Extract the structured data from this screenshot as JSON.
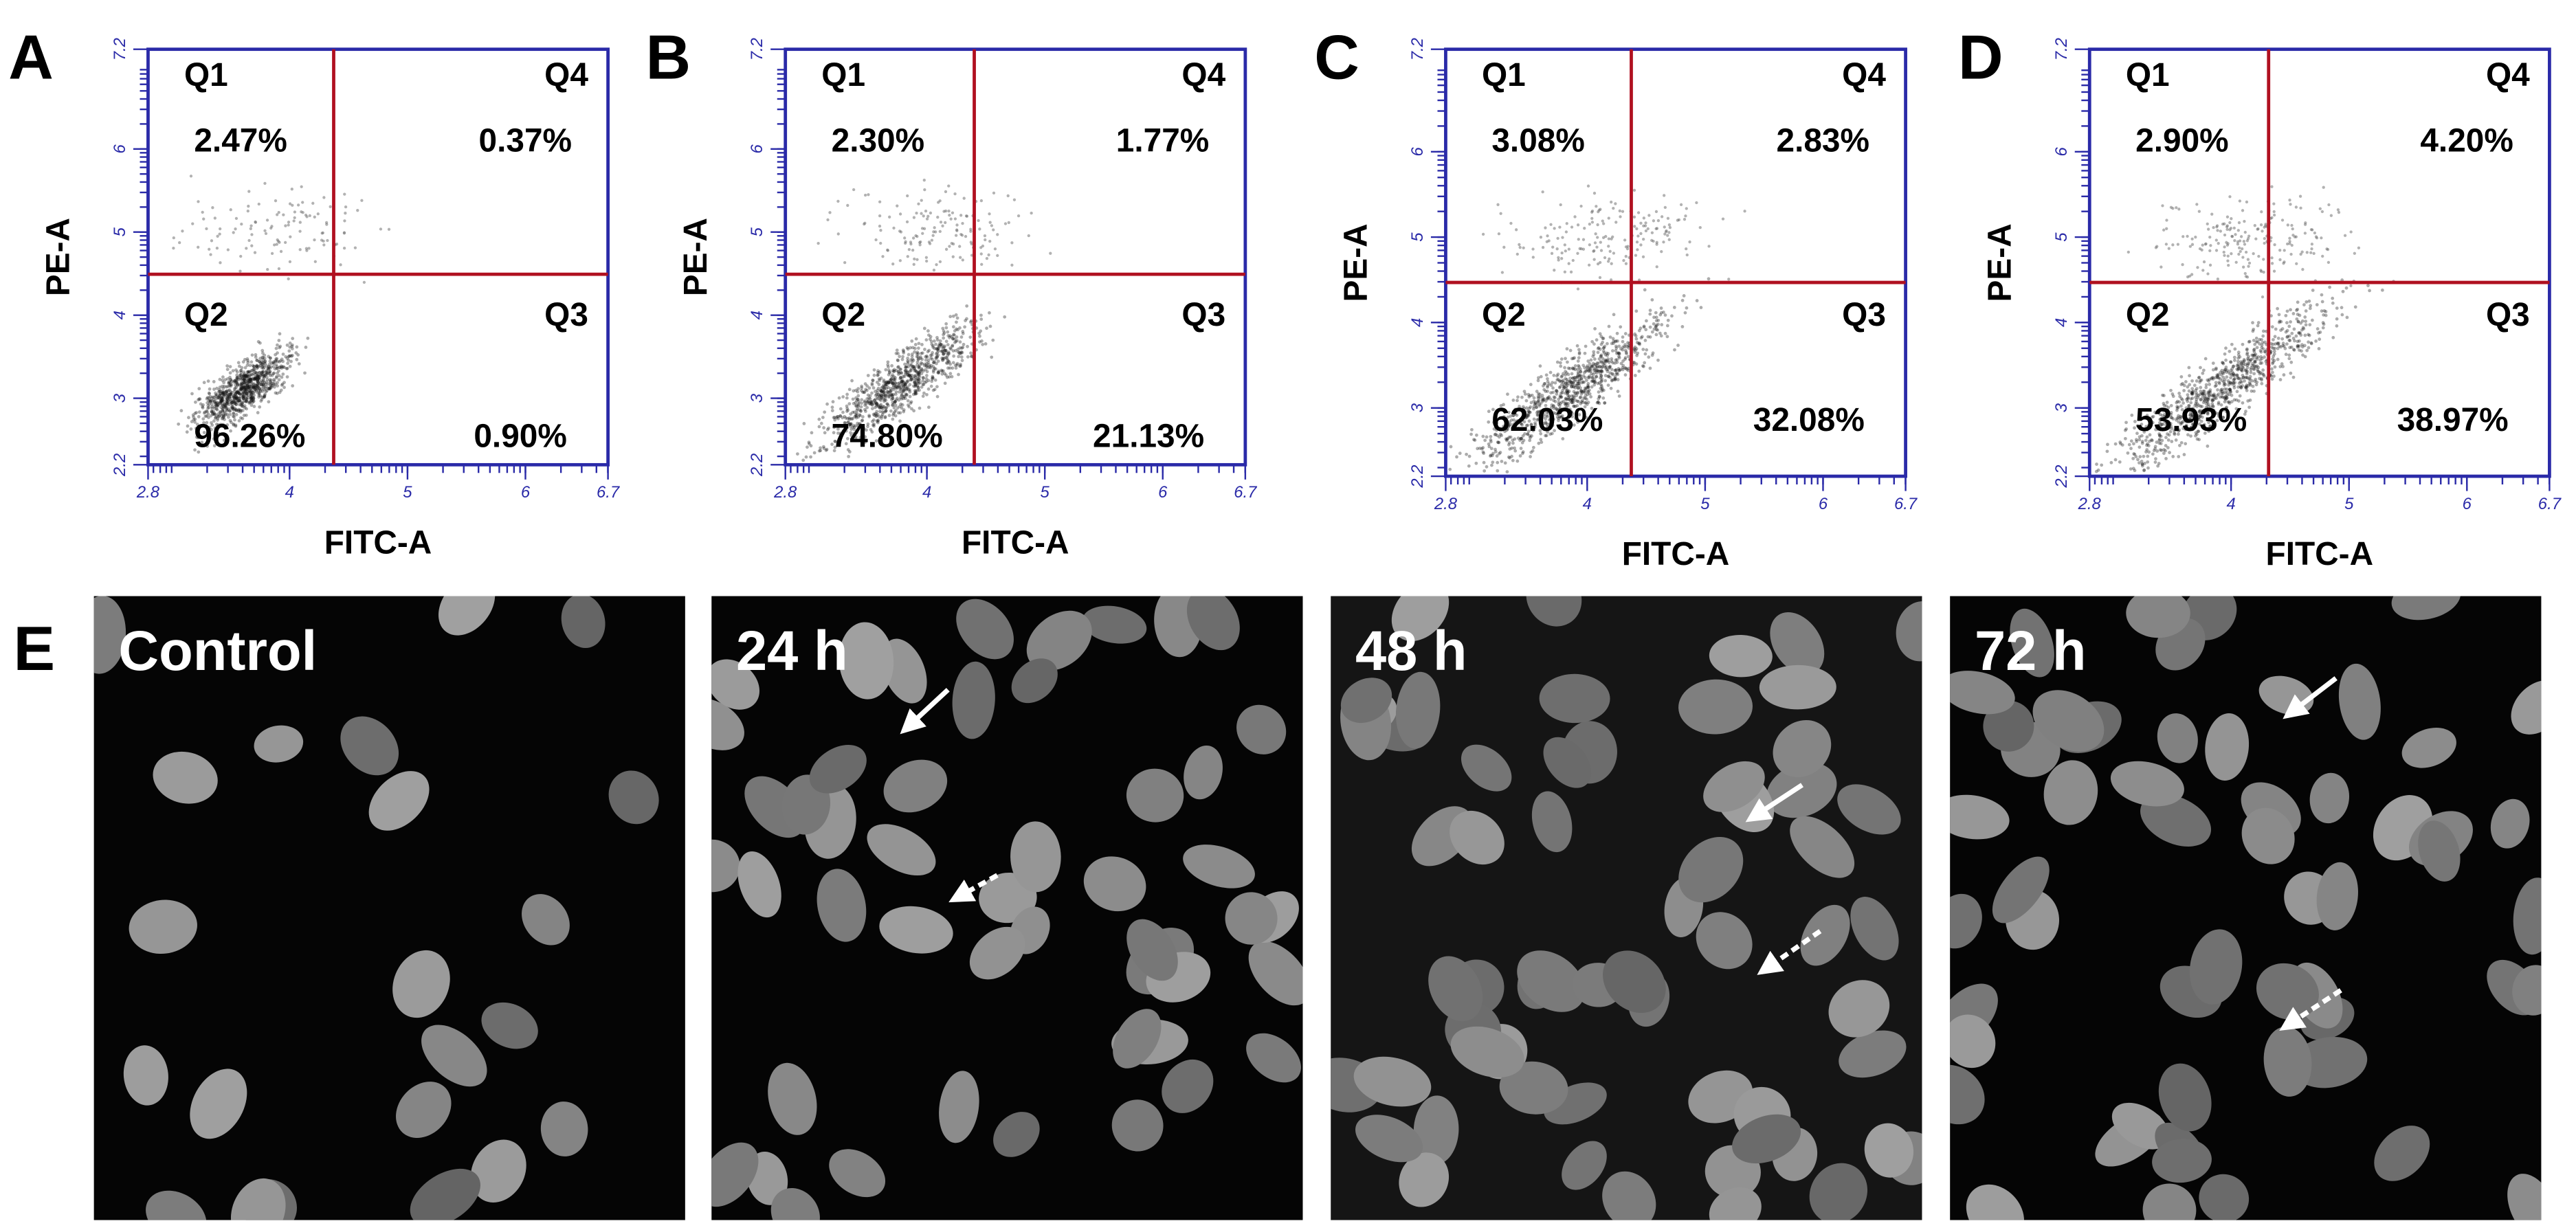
{
  "plots": [
    {
      "letter": "A",
      "ylabel": "PE-A",
      "xlabel": "FITC-A",
      "xlim": [
        2.8,
        6.7
      ],
      "ylim": [
        2.2,
        7.2
      ],
      "xticks": [
        2.8,
        4,
        5,
        6,
        6.7
      ],
      "yticks": [
        2.2,
        3,
        4,
        5,
        6,
        7.2
      ],
      "quadrants": [
        {
          "name": "Q1",
          "value": "2.47%"
        },
        {
          "name": "Q4",
          "value": "0.37%"
        },
        {
          "name": "Q2",
          "value": "96.26%"
        },
        {
          "name": "Q3",
          "value": "0.90%"
        }
      ]
    },
    {
      "letter": "B",
      "ylabel": "PE-A",
      "xlabel": "FITC-A",
      "xlim": [
        2.8,
        6.7
      ],
      "ylim": [
        2.2,
        7.2
      ],
      "xticks": [
        2.8,
        4,
        5,
        6,
        6.7
      ],
      "yticks": [
        2.2,
        3,
        4,
        5,
        6,
        7.2
      ],
      "quadrants": [
        {
          "name": "Q1",
          "value": "2.30%"
        },
        {
          "name": "Q4",
          "value": "1.77%"
        },
        {
          "name": "Q2",
          "value": "74.80%"
        },
        {
          "name": "Q3",
          "value": "21.13%"
        }
      ]
    },
    {
      "letter": "C",
      "ylabel": "PE-A",
      "xlabel": "FITC-A",
      "xlim": [
        2.8,
        6.7
      ],
      "ylim": [
        2.2,
        7.2
      ],
      "xticks": [
        2.8,
        4,
        5,
        6,
        6.7
      ],
      "yticks": [
        2.2,
        3,
        4,
        5,
        6,
        7.2
      ],
      "quadrants": [
        {
          "name": "Q1",
          "value": "3.08%"
        },
        {
          "name": "Q4",
          "value": "2.83%"
        },
        {
          "name": "Q2",
          "value": "62.03%"
        },
        {
          "name": "Q3",
          "value": "32.08%"
        }
      ]
    },
    {
      "letter": "D",
      "ylabel": "PE-A",
      "xlabel": "FITC-A",
      "xlim": [
        2.8,
        6.7
      ],
      "ylim": [
        2.2,
        7.2
      ],
      "xticks": [
        2.8,
        4,
        5,
        6,
        6.7
      ],
      "yticks": [
        2.2,
        3,
        4,
        5,
        6,
        7.2
      ],
      "quadrants": [
        {
          "name": "Q1",
          "value": "2.90%"
        },
        {
          "name": "Q4",
          "value": "4.20%"
        },
        {
          "name": "Q2",
          "value": "53.93%"
        },
        {
          "name": "Q3",
          "value": "38.97%"
        }
      ]
    }
  ],
  "micrographs": {
    "letter": "E",
    "images": [
      "Control",
      "24 h",
      "48 h",
      "72 h"
    ]
  }
}
